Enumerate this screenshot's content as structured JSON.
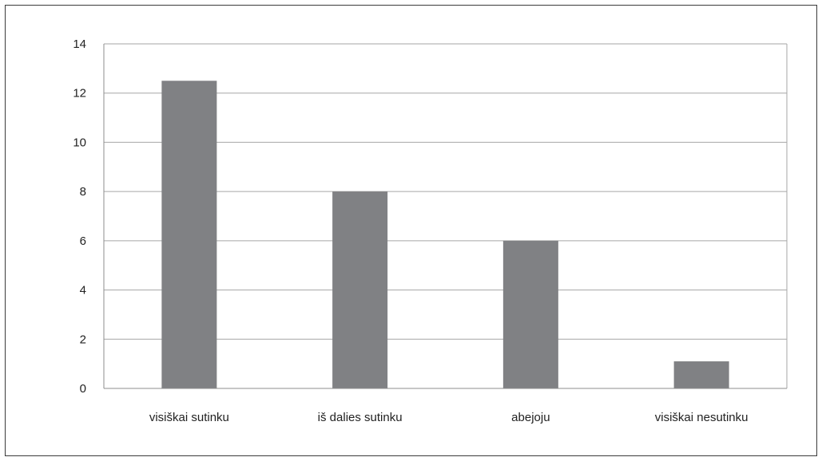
{
  "chart_data": {
    "type": "bar",
    "title": "",
    "xlabel": "",
    "ylabel": "",
    "categories": [
      "visiškai sutinku",
      "iš dalies sutinku",
      "abejoju",
      "visiškai nesutinku"
    ],
    "values": [
      12.5,
      8,
      6,
      1.1
    ],
    "ylim": [
      0,
      14
    ],
    "yticks": [
      "0",
      "2",
      "4",
      "6",
      "8",
      "10",
      "12",
      "14"
    ],
    "grid": true,
    "legend": "none",
    "colors": {
      "bar": "#808184",
      "grid": "#a6a6a6",
      "frame": "#3a3a3a"
    }
  }
}
